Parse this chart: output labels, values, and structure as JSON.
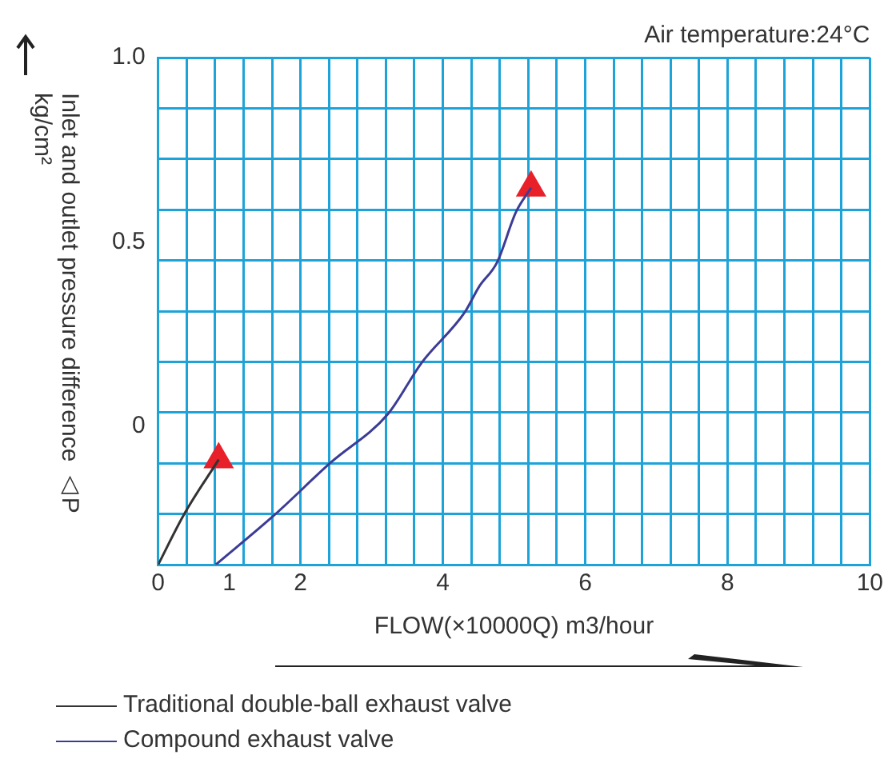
{
  "chart_data": {
    "type": "line",
    "xlabel": "FLOW(×10000Q) m3/hour",
    "ylabel": "Inlet and outlet pressure difference △P kg/cm²",
    "annotations": [
      "Air temperature:24°C"
    ],
    "xlim": [
      0,
      10
    ],
    "xticks": [
      0,
      {
        "value": 0.4,
        "label": null
      },
      {
        "value": 0.8,
        "label": null
      },
      1,
      {
        "value": 1.2,
        "label": null
      },
      {
        "value": 1.6,
        "label": null
      },
      2,
      {
        "value": 2.4,
        "label": null
      },
      {
        "value": 2.8,
        "label": null
      },
      {
        "value": 3.2,
        "label": null
      },
      {
        "value": 3.6,
        "label": null
      },
      4,
      {
        "value": 4.4,
        "label": null
      },
      {
        "value": 4.8,
        "label": null
      },
      {
        "value": 5.2,
        "label": null
      },
      {
        "value": 5.6,
        "label": null
      },
      6,
      {
        "value": 6.4,
        "label": null
      },
      {
        "value": 6.8,
        "label": null
      },
      {
        "value": 7.2,
        "label": null
      },
      {
        "value": 7.6,
        "label": null
      },
      8,
      {
        "value": 8.4,
        "label": null
      },
      {
        "value": 8.8,
        "label": null
      },
      {
        "value": 9.2,
        "label": null
      },
      {
        "value": 9.6,
        "label": null
      },
      10
    ],
    "ylim": [
      -0.375,
      1
    ],
    "yticks": [
      {
        "value": 1,
        "label": "1.0"
      },
      {
        "value": 0.8625,
        "label": null
      },
      {
        "value": 0.725,
        "label": null
      },
      {
        "value": 0.5875,
        "label": null
      },
      0.5,
      {
        "value": 0.45,
        "label": null
      },
      {
        "value": 0.3125,
        "label": null
      },
      {
        "value": 0.175,
        "label": null
      },
      {
        "value": 0.0375,
        "label": null
      },
      0,
      {
        "value": -0.1,
        "label": null
      },
      {
        "value": -0.2375,
        "label": null
      }
    ],
    "grid": true,
    "legend": "bottom left",
    "marker": "none",
    "series": [
      {
        "name": "Traditional double-ball exhaust valve",
        "color": "#333333",
        "x": [
          0,
          0.36,
          0.85
        ],
        "values": [
          -0.375,
          -0.24,
          -0.09
        ]
      },
      {
        "name": "Compound exhaust valve",
        "color": "#3c3c96",
        "x": [
          0.81,
          1.63,
          2.42,
          3.23,
          3.7,
          4.31,
          4.51,
          4.76,
          5.03,
          5.24
        ],
        "values": [
          -0.375,
          -0.241,
          -0.099,
          0.034,
          0.172,
          0.31,
          0.379,
          0.444,
          0.582,
          0.647
        ]
      },
      {
        "type": "scatter",
        "marker": "triangle",
        "color": "#e8202a",
        "x": [
          0.85,
          5.24
        ],
        "values": [
          -0.09,
          0.647
        ]
      }
    ]
  }
}
